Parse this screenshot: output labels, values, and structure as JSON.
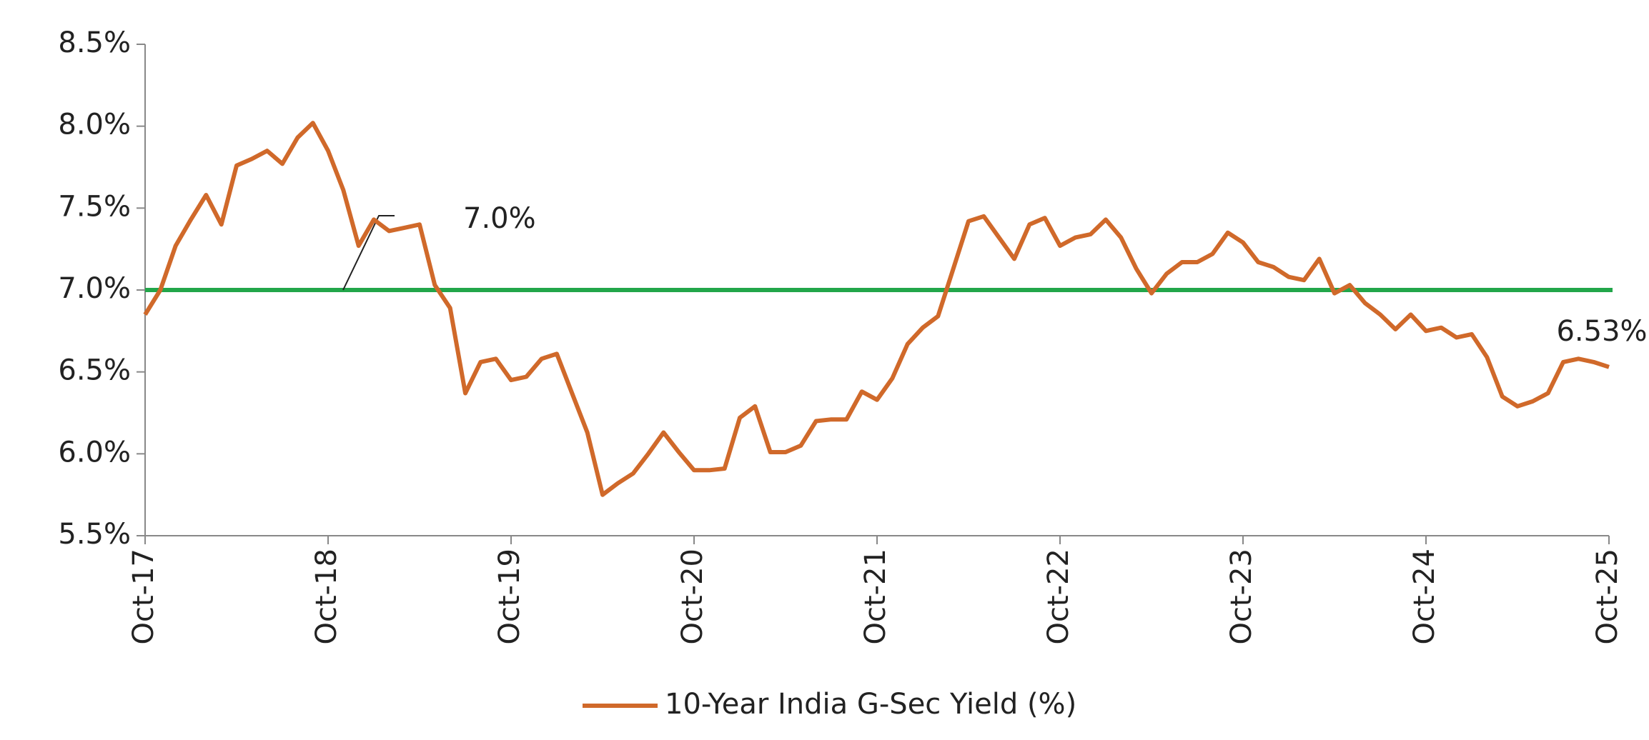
{
  "chart_data": {
    "type": "line",
    "categories": [
      "Oct-17",
      null,
      null,
      null,
      null,
      null,
      null,
      null,
      null,
      null,
      null,
      null,
      "Oct-18",
      null,
      null,
      null,
      null,
      null,
      null,
      null,
      null,
      null,
      null,
      null,
      "Oct-19",
      null,
      null,
      null,
      null,
      null,
      null,
      null,
      null,
      null,
      null,
      null,
      "Oct-20",
      null,
      null,
      null,
      null,
      null,
      null,
      null,
      null,
      null,
      null,
      null,
      "Oct-21",
      null,
      null,
      null,
      null,
      null,
      null,
      null,
      null,
      null,
      null,
      null,
      "Oct-22",
      null,
      null,
      null,
      null,
      null,
      null,
      null,
      null,
      null,
      null,
      null,
      "Oct-23",
      null,
      null,
      null,
      null,
      null,
      null,
      null,
      null,
      null,
      null,
      null,
      "Oct-24",
      null,
      null,
      null,
      null,
      null,
      null,
      null,
      null,
      null,
      null,
      null,
      "Oct-25"
    ],
    "series": [
      {
        "name": "10-Year India G-Sec Yield (%)",
        "color": "#d0692a",
        "values": [
          6.85,
          7.0,
          7.27,
          7.43,
          7.58,
          7.4,
          7.76,
          7.8,
          7.85,
          7.77,
          7.93,
          8.02,
          7.85,
          7.61,
          7.27,
          7.43,
          7.36,
          7.38,
          7.4,
          7.03,
          6.89,
          6.37,
          6.56,
          6.58,
          6.45,
          6.47,
          6.58,
          6.61,
          6.37,
          6.13,
          5.75,
          5.82,
          5.88,
          6.0,
          6.13,
          6.01,
          5.9,
          5.9,
          5.91,
          6.22,
          6.29,
          6.01,
          6.01,
          6.05,
          6.2,
          6.21,
          6.21,
          6.38,
          6.33,
          6.46,
          6.67,
          6.77,
          6.84,
          7.13,
          7.42,
          7.45,
          7.32,
          7.19,
          7.4,
          7.44,
          7.27,
          7.32,
          7.34,
          7.43,
          7.32,
          7.13,
          6.98,
          7.1,
          7.17,
          7.17,
          7.22,
          7.35,
          7.29,
          7.17,
          7.14,
          7.08,
          7.06,
          7.19,
          6.98,
          7.03,
          6.92,
          6.85,
          6.76,
          6.85,
          6.75,
          6.77,
          6.71,
          6.73,
          6.59,
          6.35,
          6.29,
          6.32,
          6.37,
          6.56,
          6.58,
          6.56,
          6.53
        ],
        "value_labels": [
          null,
          null,
          null,
          null,
          null,
          null,
          null,
          null,
          null,
          null,
          null,
          null,
          null,
          null,
          null,
          null,
          null,
          null,
          null,
          null,
          null,
          null,
          null,
          null,
          null,
          null,
          null,
          null,
          null,
          null,
          null,
          null,
          null,
          null,
          null,
          null,
          null,
          null,
          null,
          null,
          null,
          null,
          null,
          null,
          null,
          null,
          null,
          null,
          null,
          null,
          null,
          null,
          null,
          null,
          null,
          null,
          null,
          null,
          null,
          null,
          null,
          null,
          null,
          null,
          null,
          null,
          null,
          null,
          null,
          null,
          null,
          null,
          null,
          null,
          null,
          null,
          null,
          null,
          null,
          null,
          null,
          null,
          null,
          null,
          null,
          null,
          null,
          null,
          null,
          null,
          null,
          null,
          null,
          null,
          null,
          null,
          "6.53%"
        ]
      }
    ],
    "reference_line": {
      "value": 7.0,
      "label": "7.0%",
      "color": "#22a64a"
    },
    "ylim": [
      5.5,
      8.5
    ],
    "yticks": [
      {
        "value": 5.5,
        "label": "5.5%"
      },
      {
        "value": 6.0,
        "label": "6.0%"
      },
      {
        "value": 6.5,
        "label": "6.5%"
      },
      {
        "value": 7.0,
        "label": "7.0%"
      },
      {
        "value": 7.5,
        "label": "7.5%"
      },
      {
        "value": 8.0,
        "label": "8.0%"
      },
      {
        "value": 8.5,
        "label": "8.5%"
      }
    ],
    "grid": false,
    "legend": "bottom"
  }
}
